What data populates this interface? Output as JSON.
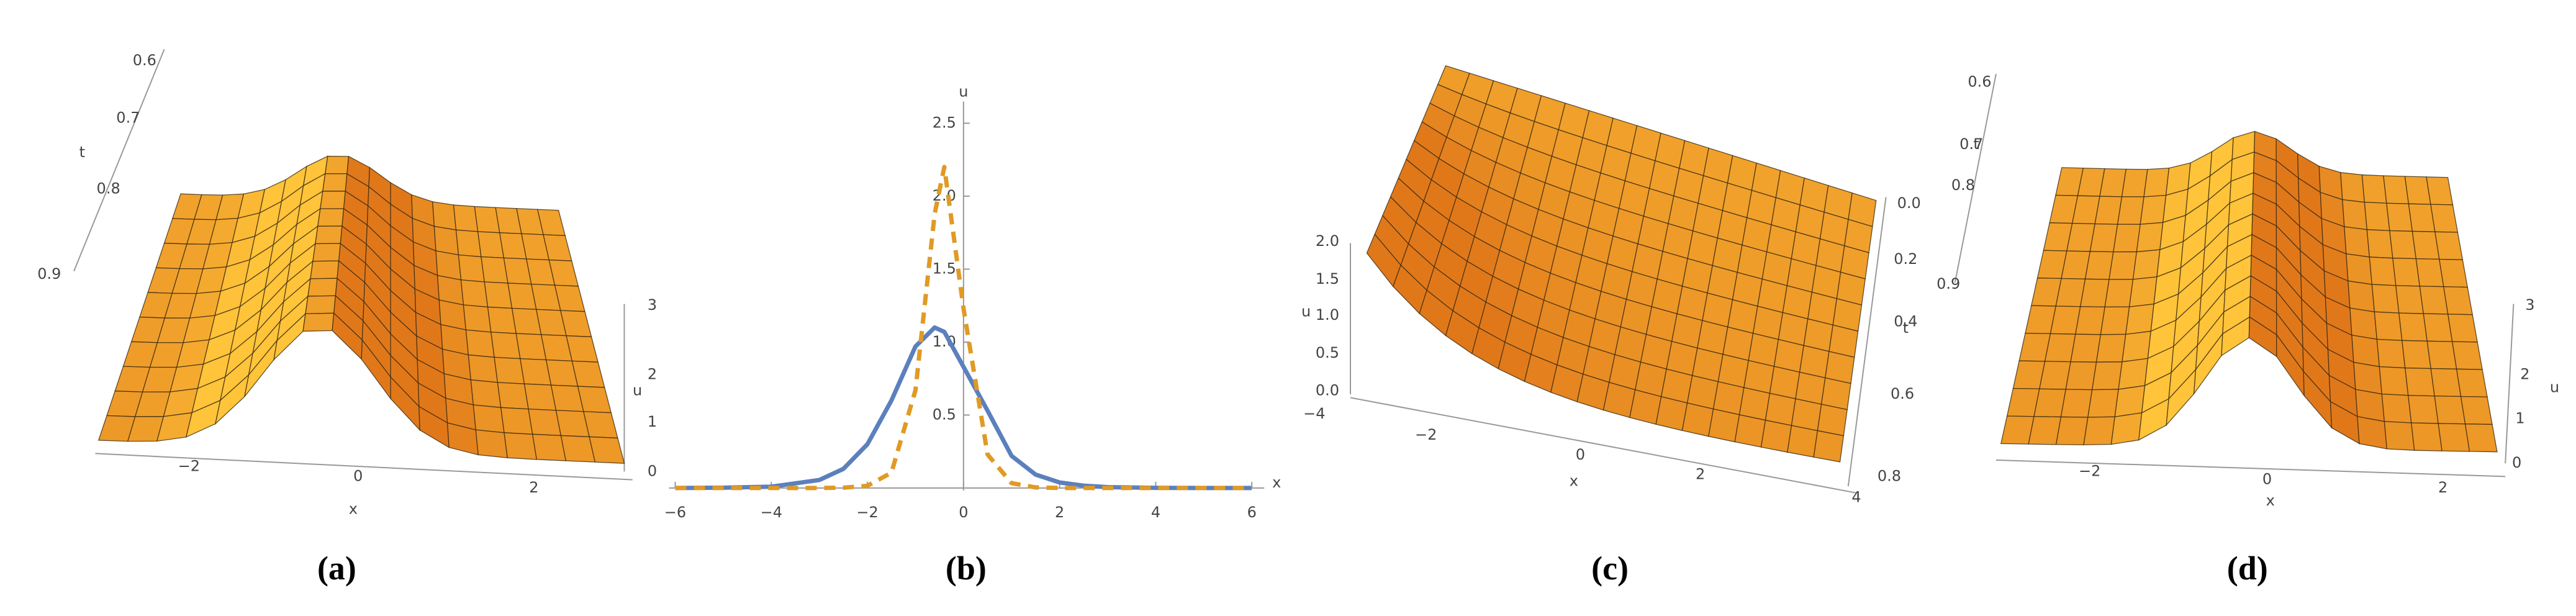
{
  "chart_data": [
    {
      "type": "surface",
      "caption": "(a)",
      "xlabel": "x",
      "ylabel": "t",
      "zlabel": "u",
      "xticks": [
        {
          "value": -2,
          "label": "−2"
        },
        0,
        2
      ],
      "yticks": [
        0.6,
        0.7,
        0.8,
        0.9
      ],
      "zticks": [
        0,
        1,
        2,
        3
      ]
    },
    {
      "type": "line",
      "caption": "(b)",
      "xlabel": "x",
      "ylabel": "u",
      "x": [
        -6,
        -5,
        -4,
        -3,
        -2.5,
        -2,
        -1.5,
        -1,
        -0.6,
        -0.4,
        0,
        0.5,
        1,
        1.5,
        2,
        2.5,
        3,
        4,
        5,
        6
      ],
      "series": [
        {
          "color": "#5b80bd",
          "linestyle": "solid",
          "values": [
            0,
            0.002,
            0.009,
            0.055,
            0.131,
            0.3,
            0.6,
            0.97,
            1.1,
            1.07,
            0.83,
            0.53,
            0.22,
            0.092,
            0.038,
            0.016,
            0.006,
            0.001,
            0,
            0
          ]
        },
        {
          "color": "#e09a25",
          "linestyle": "dashed",
          "values": [
            0,
            0,
            0,
            0,
            0.002,
            0.015,
            0.105,
            0.67,
            1.88,
            2.2,
            1.23,
            0.23,
            0.033,
            0.004,
            0,
            0,
            0,
            0,
            0,
            0
          ]
        }
      ],
      "xlim": [
        -6,
        6
      ],
      "ylim": [
        0,
        2.5
      ],
      "xticks": [
        {
          "value": -6,
          "label": "−6"
        },
        {
          "value": -4,
          "label": "−4"
        },
        {
          "value": -2,
          "label": "−2"
        },
        0,
        2,
        4,
        6
      ],
      "yticks": [
        0.5,
        {
          "value": 1,
          "label": "1.0"
        },
        1.5,
        {
          "value": 2,
          "label": "2.0"
        },
        2.5
      ]
    },
    {
      "type": "surface",
      "caption": "(c)",
      "xlabel": "x",
      "ylabel": "t",
      "zlabel": "u",
      "xticks": [
        {
          "value": -4,
          "label": "−4"
        },
        {
          "value": -2,
          "label": "−2"
        },
        0,
        2,
        4
      ],
      "yticks": [
        {
          "value": 0,
          "label": "0.0"
        },
        0.2,
        0.4,
        0.6,
        0.8
      ],
      "zticks": [
        {
          "value": 0,
          "label": "0.0"
        },
        0.5,
        {
          "value": 1,
          "label": "1.0"
        },
        1.5,
        {
          "value": 2,
          "label": "2.0"
        }
      ]
    },
    {
      "type": "surface",
      "caption": "(d)",
      "xlabel": "x",
      "ylabel": "t",
      "zlabel": "u",
      "xticks": [
        {
          "value": -2,
          "label": "−2"
        },
        0,
        2
      ],
      "yticks": [
        0.6,
        0.7,
        0.8,
        0.9
      ],
      "zticks": [
        0,
        1,
        2,
        3
      ]
    }
  ]
}
